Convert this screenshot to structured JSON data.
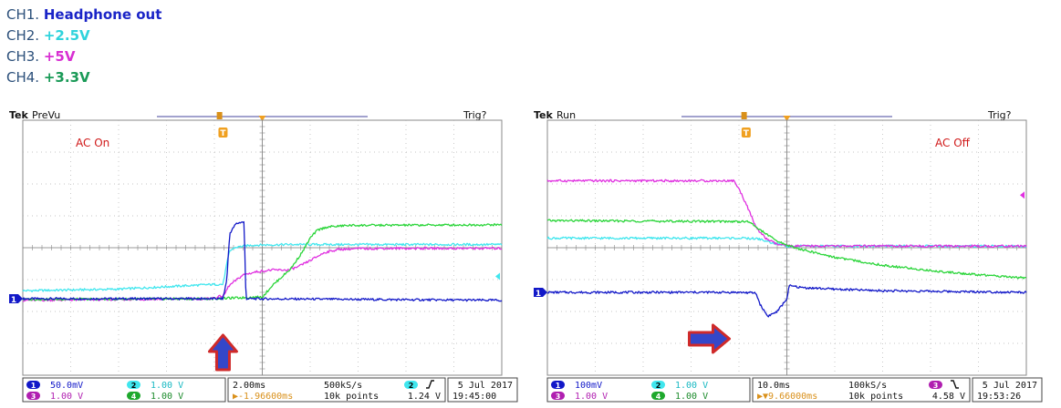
{
  "legend": [
    {
      "prefix": "CH1.",
      "name": "Headphone out",
      "color": "#1a24c7"
    },
    {
      "prefix": "CH2.",
      "name": "+2.5V",
      "color": "#2fd3dc"
    },
    {
      "prefix": "CH3.",
      "name": "+5V",
      "color": "#d82fd2"
    },
    {
      "prefix": "CH4.",
      "name": "+3.3V",
      "color": "#1a9a57"
    }
  ],
  "colors": {
    "ch1": "#1218c8",
    "ch2": "#40e6ee",
    "ch3": "#e02fe0",
    "ch4": "#2bd53a",
    "trigger": "#f0a020",
    "grid": "#b4b4b4",
    "arrow_fill": "#3447c9",
    "arrow_border": "#cf2a2a",
    "annotation": "#d01818"
  },
  "chart_data": [
    {
      "type": "line",
      "brand": "Tek",
      "mode": "PreVu",
      "trig_status": "Trig?",
      "annotation": "AC On",
      "arrow_direction": "up",
      "grid": {
        "divisions_x": 10,
        "divisions_y": 8
      },
      "xlim": [
        0,
        10
      ],
      "ylim": [
        -4,
        4
      ],
      "x_unit": "div",
      "y_unit": "div",
      "series": [
        {
          "channel": 1,
          "color_key": "ch1",
          "x": [
            0,
            4.0,
            4.18,
            4.26,
            4.32,
            4.45,
            4.55,
            4.62,
            4.66,
            4.7,
            10
          ],
          "y": [
            -1.6,
            -1.6,
            -1.6,
            -1.0,
            0.45,
            0.75,
            0.8,
            0.8,
            -1.6,
            -1.6,
            -1.65
          ]
        },
        {
          "channel": 2,
          "color_key": "ch2",
          "x": [
            0,
            2.0,
            3.3,
            4.0,
            4.18,
            4.26,
            4.32,
            4.42,
            4.6,
            4.8,
            5.5,
            10
          ],
          "y": [
            -1.35,
            -1.3,
            -1.2,
            -1.15,
            -1.15,
            -0.5,
            -0.1,
            0.0,
            0.05,
            0.08,
            0.1,
            0.1
          ]
        },
        {
          "channel": 3,
          "color_key": "ch3",
          "x": [
            0,
            3.9,
            4.2,
            4.3,
            4.6,
            4.9,
            5.2,
            5.55,
            5.75,
            6.0,
            6.3,
            6.6,
            7.0,
            7.5,
            10
          ],
          "y": [
            -1.65,
            -1.6,
            -1.5,
            -1.2,
            -0.85,
            -0.75,
            -0.7,
            -0.7,
            -0.6,
            -0.4,
            -0.15,
            -0.05,
            -0.03,
            -0.02,
            -0.02
          ]
        },
        {
          "channel": 4,
          "color_key": "ch4",
          "x": [
            0,
            4.0,
            4.9,
            5.0,
            5.2,
            5.6,
            5.85,
            6.0,
            6.15,
            6.35,
            6.8,
            10
          ],
          "y": [
            -1.62,
            -1.6,
            -1.55,
            -1.55,
            -1.2,
            -0.65,
            -0.1,
            0.3,
            0.55,
            0.65,
            0.7,
            0.72
          ]
        }
      ],
      "markers": {
        "ch1_ref_y": -1.6,
        "ch2_ref_y": -0.9,
        "trigger_x": 4.18
      },
      "readout": {
        "ch1_scale": "50.0mV",
        "ch2_scale": "1.00 V",
        "ch3_scale": "1.00 V",
        "ch4_scale": "1.00 V",
        "timebase": "2.00ms",
        "sample_rate": "500kS/s",
        "trig_offset": "▶-1.96600ms",
        "record": "10k points",
        "trig_channel": "2",
        "trig_slope": "rising",
        "trig_level": "1.24 V",
        "date": "5 Jul   2017",
        "time": "19:45:00"
      }
    },
    {
      "type": "line",
      "brand": "Tek",
      "mode": "Run",
      "trig_status": "Trig?",
      "annotation": "AC Off",
      "arrow_direction": "right",
      "grid": {
        "divisions_x": 10,
        "divisions_y": 8
      },
      "xlim": [
        0,
        10
      ],
      "ylim": [
        -4,
        4
      ],
      "x_unit": "div",
      "y_unit": "div",
      "series": [
        {
          "channel": 1,
          "color_key": "ch1",
          "x": [
            0,
            4.0,
            4.35,
            4.45,
            4.6,
            4.8,
            5.0,
            5.05,
            5.1,
            5.3,
            6.0,
            7.0,
            10
          ],
          "y": [
            -1.4,
            -1.4,
            -1.42,
            -1.8,
            -2.15,
            -2.0,
            -1.6,
            -1.2,
            -1.2,
            -1.25,
            -1.3,
            -1.35,
            -1.4
          ]
        },
        {
          "channel": 2,
          "color_key": "ch2",
          "x": [
            0,
            4.0,
            4.4,
            4.7,
            5.0,
            5.5,
            10
          ],
          "y": [
            0.3,
            0.3,
            0.28,
            0.15,
            0.05,
            0.05,
            0.05
          ]
        },
        {
          "channel": 3,
          "color_key": "ch3",
          "x": [
            0,
            3.9,
            4.05,
            4.2,
            4.35,
            4.55,
            4.8,
            5.1,
            5.6,
            10
          ],
          "y": [
            2.1,
            2.1,
            1.7,
            1.2,
            0.65,
            0.3,
            0.1,
            0.05,
            0.05,
            0.05
          ]
        },
        {
          "channel": 4,
          "color_key": "ch4",
          "x": [
            0,
            4.2,
            4.5,
            4.8,
            5.2,
            6.0,
            7.0,
            8.0,
            9.0,
            10
          ],
          "y": [
            0.85,
            0.82,
            0.5,
            0.2,
            -0.02,
            -0.3,
            -0.55,
            -0.72,
            -0.85,
            -0.95
          ]
        }
      ],
      "markers": {
        "ch1_ref_y": -1.4,
        "ch3_ref_y": 1.65,
        "trigger_x": 4.15
      },
      "readout": {
        "ch1_scale": "100mV",
        "ch2_scale": "1.00 V",
        "ch3_scale": "1.00 V",
        "ch4_scale": "1.00 V",
        "timebase": "10.0ms",
        "sample_rate": "100kS/s",
        "trig_offset": "▶▼9.66000ms",
        "record": "10k points",
        "trig_channel": "3",
        "trig_slope": "falling",
        "trig_level": "4.58 V",
        "date": "5 Jul   2017",
        "time": "19:53:26"
      }
    }
  ]
}
